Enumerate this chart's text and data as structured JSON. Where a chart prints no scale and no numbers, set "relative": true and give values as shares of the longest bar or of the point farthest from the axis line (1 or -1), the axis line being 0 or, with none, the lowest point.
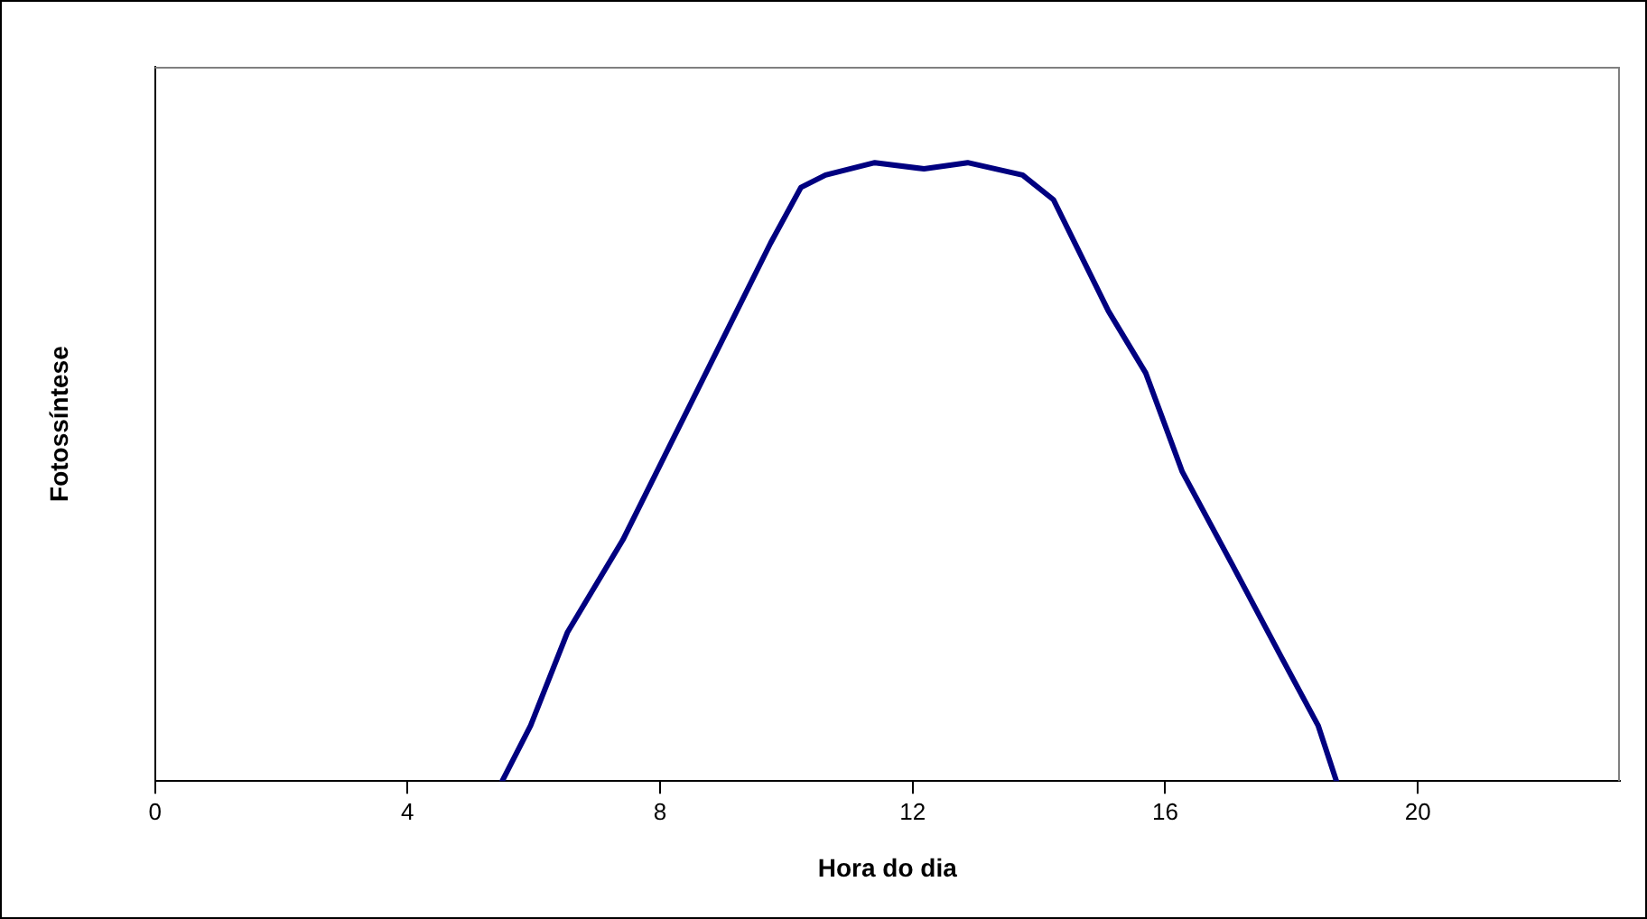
{
  "chart_data": {
    "type": "line",
    "xlabel": "Hora do dia",
    "ylabel": "Fotossíntese",
    "relative": true,
    "xlim": [
      0,
      23.2
    ],
    "xticks": [
      0,
      4,
      8,
      12,
      16,
      20
    ],
    "grid": false,
    "legend": false,
    "marker": "none",
    "line_style": "solid",
    "series": [
      {
        "color": "#000080",
        "x": [
          5.5,
          5.95,
          6.53,
          7.41,
          8.19,
          8.97,
          9.75,
          10.23,
          10.62,
          11.4,
          12.18,
          12.87,
          13.74,
          14.23,
          15.1,
          15.69,
          16.27,
          17.06,
          17.84,
          18.42,
          18.71
        ],
        "values": [
          0,
          0.09,
          0.24,
          0.39,
          0.55,
          0.71,
          0.87,
          0.96,
          0.98,
          1.0,
          0.99,
          1.0,
          0.98,
          0.94,
          0.76,
          0.66,
          0.5,
          0.35,
          0.2,
          0.09,
          0
        ]
      }
    ]
  }
}
